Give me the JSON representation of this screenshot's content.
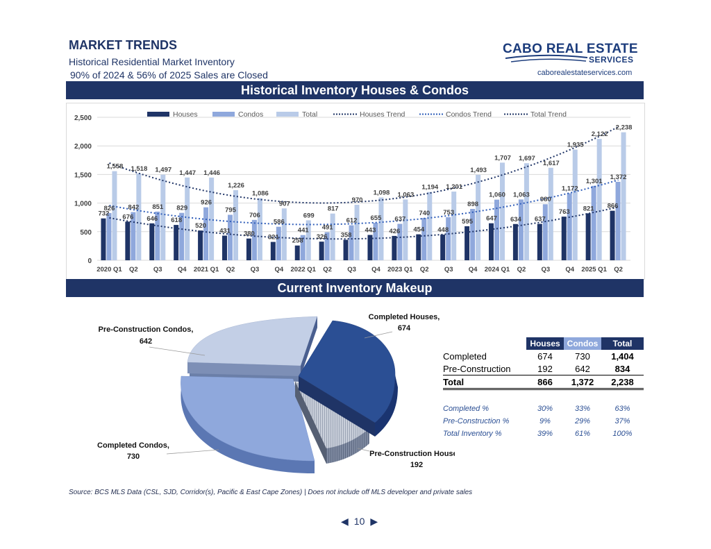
{
  "header": {
    "title": "MARKET TRENDS",
    "subtitle": "Historical Residential Market Inventory",
    "note": "90% of 2024 & 56% of 2025 Sales are Closed",
    "logo_main": "CABO REAL ESTATE",
    "logo_sub": "SERVICES",
    "website": "caborealestateservices.com"
  },
  "sections": {
    "chart_banner": "Historical Inventory Houses & Condos",
    "makeup_banner": "Current Inventory Makeup"
  },
  "chart_data": [
    {
      "type": "bar",
      "title": "Historical Inventory Houses & Condos",
      "categories": [
        "2020 Q1",
        "Q2",
        "Q3",
        "Q4",
        "2021 Q1",
        "Q2",
        "Q3",
        "Q4",
        "2022 Q1",
        "Q2",
        "Q3",
        "Q4",
        "2023 Q1",
        "Q2",
        "Q3",
        "Q4",
        "2024 Q1",
        "Q2",
        "Q3",
        "Q4",
        "2025 Q1",
        "Q2"
      ],
      "series": [
        {
          "name": "Houses",
          "color": "#1f3466",
          "values": [
            732,
            676,
            646,
            618,
            520,
            431,
            380,
            321,
            258,
            326,
            358,
            443,
            426,
            454,
            448,
            595,
            647,
            634,
            637,
            763,
            821,
            866
          ]
        },
        {
          "name": "Condos",
          "color": "#8fa8dc",
          "values": [
            826,
            842,
            851,
            829,
            926,
            795,
            706,
            586,
            441,
            491,
            612,
            655,
            637,
            740,
            753,
            898,
            1060,
            1063,
            980,
            1172,
            1301,
            1372
          ]
        },
        {
          "name": "Total",
          "color": "#b9cbe8",
          "values": [
            1558,
            1518,
            1497,
            1447,
            1446,
            1226,
            1086,
            907,
            699,
            817,
            970,
            1098,
            1063,
            1194,
            1201,
            1493,
            1707,
            1697,
            1617,
            1935,
            2122,
            2238
          ]
        }
      ],
      "trends": [
        {
          "name": "Houses Trend",
          "color": "#1f3466"
        },
        {
          "name": "Condos Trend",
          "color": "#2e5cb8"
        },
        {
          "name": "Total Trend",
          "color": "#1f3466"
        }
      ],
      "yticks": [
        "0",
        "500",
        "1,000",
        "1,500",
        "2,000",
        "2,500"
      ],
      "ylim": [
        0,
        2500
      ],
      "grid": true,
      "legend": "top"
    },
    {
      "type": "pie",
      "slices": [
        {
          "label": "Completed Houses,",
          "value": 674,
          "value_label": "674",
          "color": "#2b4f94"
        },
        {
          "label": "Pre-Construction Houses,",
          "value": 192,
          "value_label": "192",
          "color": "#9aa5b8"
        },
        {
          "label": "Completed Condos,",
          "value": 730,
          "value_label": "730",
          "color": "#8fa8dc"
        },
        {
          "label": "Pre-Construction Condos,",
          "value": 642,
          "value_label": "642",
          "color": "#c3cfe6"
        }
      ]
    }
  ],
  "makeup_table": {
    "headers": [
      "Houses",
      "Condos",
      "Total"
    ],
    "rows": [
      {
        "label": "Completed",
        "houses": "674",
        "condos": "730",
        "total": "1,404"
      },
      {
        "label": "Pre-Construction",
        "houses": "192",
        "condos": "642",
        "total": "834"
      },
      {
        "label": "Total",
        "houses": "866",
        "condos": "1,372",
        "total": "2,238"
      }
    ],
    "pct_rows": [
      {
        "label": "Completed %",
        "houses": "30%",
        "condos": "33%",
        "total": "63%"
      },
      {
        "label": "Pre-Construction %",
        "houses": "9%",
        "condos": "29%",
        "total": "37%"
      },
      {
        "label": "Total Inventory %",
        "houses": "39%",
        "condos": "61%",
        "total": "100%"
      }
    ]
  },
  "footer": {
    "source": "Source:  BCS MLS Data (CSL, SJD, Corridor(s), Pacific & East Cape Zones) | Does not include off MLS developer and private sales",
    "page": "10",
    "prev_icon": "triangle-left-icon",
    "next_icon": "triangle-right-icon"
  }
}
